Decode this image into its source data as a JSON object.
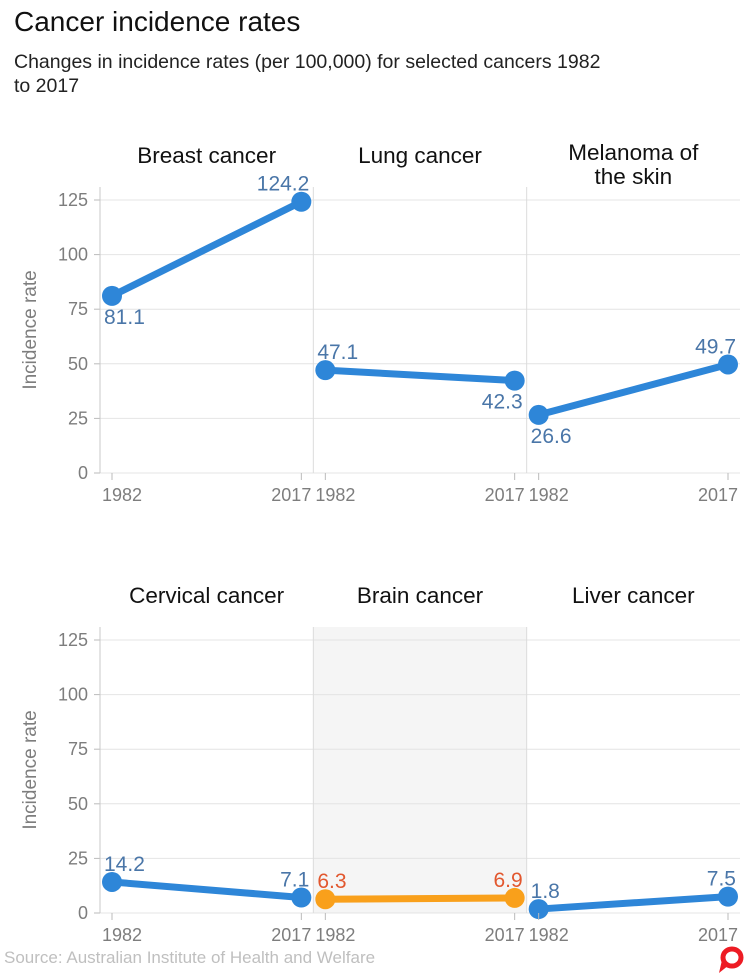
{
  "header": {
    "title": "Cancer incidence rates",
    "subtitle": "Changes in incidence rates (per 100,000) for selected cancers 1982 to 2017"
  },
  "footer": {
    "source": "Source: Australian Institute of Health and Welfare",
    "logo": "the-conversation-logo"
  },
  "colors": {
    "line_blue": "#2e86d8",
    "label_blue": "#4a76a8",
    "line_orange": "#f9a01b",
    "label_orange": "#e2572e",
    "grid": "#e4e4e4",
    "separator": "#dcdcdc",
    "axis_line": "#c8c8c8",
    "tick": "#bbbbbb",
    "axis_text": "#7d7d7d",
    "panel_title": "#111111",
    "highlight_bg": "#f5f5f5",
    "logo_red": "#ed1c24"
  },
  "chart_data": {
    "type": "line",
    "layout": "small_multiples_2x3",
    "x": [
      1982,
      2017
    ],
    "x_tick_labels": [
      "1982",
      "2017"
    ],
    "ylabel": "Incidence rate",
    "ylim": [
      0,
      125
    ],
    "yticks": [
      0,
      25,
      50,
      75,
      100,
      125
    ],
    "grid": true,
    "rows": [
      {
        "panels": [
          {
            "title": "Breast cancer",
            "title_lines": [
              "Breast cancer"
            ],
            "values": [
              81.1,
              124.2
            ],
            "value_labels": [
              "81.1",
              "124.2"
            ],
            "label_positions": [
              "below",
              "above"
            ],
            "series_color": "blue",
            "highlighted": false
          },
          {
            "title": "Lung cancer",
            "title_lines": [
              "Lung cancer"
            ],
            "values": [
              47.1,
              42.3
            ],
            "value_labels": [
              "47.1",
              "42.3"
            ],
            "label_positions": [
              "above",
              "below"
            ],
            "series_color": "blue",
            "highlighted": false
          },
          {
            "title": "Melanoma of the skin",
            "title_lines": [
              "Melanoma of",
              "the skin"
            ],
            "values": [
              26.6,
              49.7
            ],
            "value_labels": [
              "26.6",
              "49.7"
            ],
            "label_positions": [
              "below",
              "above"
            ],
            "series_color": "blue",
            "highlighted": false
          }
        ]
      },
      {
        "panels": [
          {
            "title": "Cervical cancer",
            "title_lines": [
              "Cervical cancer"
            ],
            "values": [
              14.2,
              7.1
            ],
            "value_labels": [
              "14.2",
              "7.1"
            ],
            "label_positions": [
              "above",
              "above"
            ],
            "series_color": "blue",
            "highlighted": false
          },
          {
            "title": "Brain cancer",
            "title_lines": [
              "Brain cancer"
            ],
            "values": [
              6.3,
              6.9
            ],
            "value_labels": [
              "6.3",
              "6.9"
            ],
            "label_positions": [
              "above",
              "above"
            ],
            "series_color": "orange",
            "highlighted": true
          },
          {
            "title": "Liver cancer",
            "title_lines": [
              "Liver cancer"
            ],
            "values": [
              1.8,
              7.5
            ],
            "value_labels": [
              "1.8",
              "7.5"
            ],
            "label_positions": [
              "above",
              "above"
            ],
            "series_color": "blue",
            "highlighted": false
          }
        ]
      }
    ]
  }
}
